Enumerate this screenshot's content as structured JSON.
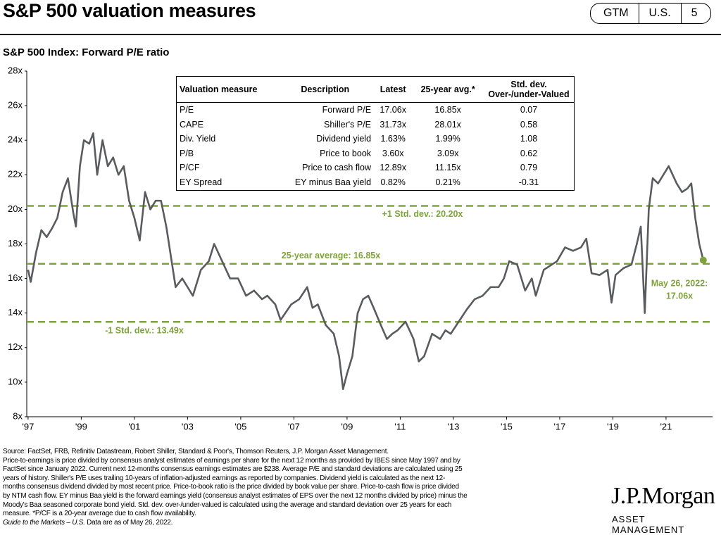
{
  "header": {
    "title": "S&P 500 valuation measures",
    "badges": [
      "GTM",
      "U.S.",
      "5"
    ]
  },
  "chart_data": {
    "type": "line",
    "title": "S&P 500 Index: Forward P/E ratio",
    "x": [
      1997.0,
      1997.1,
      1997.3,
      1997.5,
      1997.7,
      1997.9,
      1998.1,
      1998.3,
      1998.5,
      1998.7,
      1998.8,
      1998.95,
      1999.1,
      1999.3,
      1999.45,
      1999.6,
      1999.8,
      2000.0,
      2000.2,
      2000.4,
      2000.6,
      2000.8,
      2001.0,
      2001.2,
      2001.4,
      2001.6,
      2001.8,
      2002.0,
      2002.2,
      2002.4,
      2002.55,
      2002.8,
      2003.0,
      2003.2,
      2003.5,
      2003.8,
      2004.0,
      2004.3,
      2004.6,
      2004.9,
      2005.2,
      2005.5,
      2005.8,
      2006.0,
      2006.3,
      2006.5,
      2006.9,
      2007.2,
      2007.5,
      2007.7,
      2007.9,
      2008.2,
      2008.5,
      2008.7,
      2008.85,
      2009.0,
      2009.2,
      2009.4,
      2009.6,
      2009.8,
      2010.0,
      2010.3,
      2010.5,
      2010.7,
      2010.9,
      2011.2,
      2011.5,
      2011.7,
      2011.9,
      2012.2,
      2012.5,
      2012.7,
      2012.9,
      2013.2,
      2013.5,
      2013.8,
      2014.1,
      2014.4,
      2014.7,
      2014.9,
      2015.1,
      2015.4,
      2015.7,
      2015.95,
      2016.1,
      2016.4,
      2016.7,
      2016.9,
      2017.2,
      2017.5,
      2017.8,
      2018.0,
      2018.2,
      2018.5,
      2018.8,
      2018.95,
      2019.1,
      2019.4,
      2019.7,
      2019.9,
      2020.05,
      2020.2,
      2020.35,
      2020.5,
      2020.7,
      2020.9,
      2021.1,
      2021.4,
      2021.6,
      2021.8,
      2021.95,
      2022.1,
      2022.25,
      2022.4
    ],
    "series": [
      {
        "color": "#595b5e",
        "values": [
          16.5,
          15.8,
          17.5,
          18.8,
          18.4,
          18.9,
          19.5,
          21.0,
          21.8,
          19.8,
          19.0,
          22.5,
          24.0,
          23.8,
          24.4,
          22.0,
          24.0,
          22.5,
          23.0,
          22.0,
          22.5,
          20.5,
          19.5,
          18.2,
          21.0,
          20.0,
          20.5,
          20.5,
          19.0,
          17.0,
          15.5,
          16.0,
          15.5,
          15.0,
          16.5,
          17.0,
          18.0,
          17.0,
          16.0,
          16.0,
          15.0,
          15.3,
          14.8,
          15.0,
          14.5,
          13.6,
          14.5,
          14.8,
          15.5,
          14.3,
          14.5,
          13.3,
          12.8,
          11.5,
          9.6,
          10.5,
          11.5,
          14.0,
          14.8,
          15.0,
          14.3,
          13.2,
          12.5,
          12.8,
          13.0,
          13.5,
          12.5,
          11.2,
          11.5,
          12.8,
          12.5,
          13.0,
          12.8,
          13.5,
          14.2,
          14.8,
          15.0,
          15.5,
          15.5,
          16.0,
          17.0,
          16.8,
          15.3,
          16.0,
          15.0,
          16.5,
          16.8,
          17.0,
          17.8,
          17.6,
          17.8,
          18.3,
          16.3,
          16.2,
          16.5,
          14.6,
          16.2,
          16.6,
          16.8,
          18.0,
          19.0,
          14.0,
          20.0,
          21.8,
          21.5,
          22.0,
          22.5,
          21.5,
          21.0,
          21.2,
          21.5,
          19.5,
          18.0,
          17.06
        ]
      }
    ],
    "xlim": [
      1996.95,
      2022.75
    ],
    "xticks": [
      {
        "value": 1997,
        "label": "'97"
      },
      {
        "value": 1999,
        "label": "'99"
      },
      {
        "value": 2001,
        "label": "'01"
      },
      {
        "value": 2003,
        "label": "'03"
      },
      {
        "value": 2005,
        "label": "'05"
      },
      {
        "value": 2007,
        "label": "'07"
      },
      {
        "value": 2009,
        "label": "'09"
      },
      {
        "value": 2011,
        "label": "'11"
      },
      {
        "value": 2013,
        "label": "'13"
      },
      {
        "value": 2015,
        "label": "'15"
      },
      {
        "value": 2017,
        "label": "'17"
      },
      {
        "value": 2019,
        "label": "'19"
      },
      {
        "value": 2021,
        "label": "'21"
      }
    ],
    "ylim": [
      8,
      28
    ],
    "yticks": [
      {
        "value": 8,
        "label": "8x"
      },
      {
        "value": 10,
        "label": "10x"
      },
      {
        "value": 12,
        "label": "12x"
      },
      {
        "value": 14,
        "label": "14x"
      },
      {
        "value": 16,
        "label": "16x"
      },
      {
        "value": 18,
        "label": "18x"
      },
      {
        "value": 20,
        "label": "20x"
      },
      {
        "value": 22,
        "label": "22x"
      },
      {
        "value": 24,
        "label": "24x"
      },
      {
        "value": 26,
        "label": "26x"
      },
      {
        "value": 28,
        "label": "28x"
      }
    ],
    "reference_color": "#7ea33a",
    "reference_lines": [
      {
        "value": 20.2,
        "label": "+1 Std. dev.: 20.20x"
      },
      {
        "value": 16.85,
        "label": "25-year average: 16.85x"
      },
      {
        "value": 13.49,
        "label": "-1 Std. dev.: 13.49x"
      }
    ],
    "end_label": [
      "May 26, 2022:",
      "17.06x"
    ]
  },
  "table": {
    "columns": [
      "Valuation measure",
      "Description",
      "Latest",
      "25-year avg.*",
      "Std. dev. Over-/under-Valued"
    ],
    "rows": [
      [
        "P/E",
        "Forward P/E",
        "17.06x",
        "16.85x",
        "0.07"
      ],
      [
        "CAPE",
        "Shiller's P/E",
        "31.73x",
        "28.01x",
        "0.58"
      ],
      [
        "Div. Yield",
        "Dividend yield",
        "1.63%",
        "1.99%",
        "1.08"
      ],
      [
        "P/B",
        "Price to book",
        "3.60x",
        "3.09x",
        "0.62"
      ],
      [
        "P/CF",
        "Price to cash flow",
        "12.89x",
        "11.15x",
        "0.79"
      ],
      [
        "EY Spread",
        "EY minus Baa yield",
        "0.82%",
        "0.21%",
        "-0.31"
      ]
    ]
  },
  "footnotes": [
    "Source: FactSet, FRB, Refinitiv Datastream, Robert Shiller, Standard & Poor's, Thomson Reuters, J.P. Morgan Asset Management.",
    "Price-to-earnings is price divided by consensus analyst estimates of earnings per share for the next 12 months as provided by IBES since May 1997 and by",
    "FactSet since January 2022. Current next 12-months consensus earnings estimates are $238. Average P/E and standard deviations are calculated using 25",
    "years of history. Shiller's P/E uses trailing 10-years of inflation-adjusted earnings as reported by companies. Dividend yield is calculated as the next 12-",
    "months consensus dividend divided by most recent price. Price-to-book ratio is the price divided by book value per share. Price-to-cash flow is price divided",
    "by NTM cash flow. EY minus Baa yield is the forward earnings yield (consensus analyst estimates of EPS over the next 12 months divided by price) minus the",
    "Moody's Baa seasoned corporate bond yield. Std. dev. over-/under-valued is calculated using the average and standard deviation over 25 years for each",
    "measure. *P/CF is a 20-year average due to cash flow availability."
  ],
  "footnote_last": {
    "italic": "Guide to the Markets – U.S.",
    "text": " Data are as of May 26, 2022."
  },
  "logo": {
    "name": "J.P.Morgan",
    "sub": "ASSET MANAGEMENT"
  }
}
